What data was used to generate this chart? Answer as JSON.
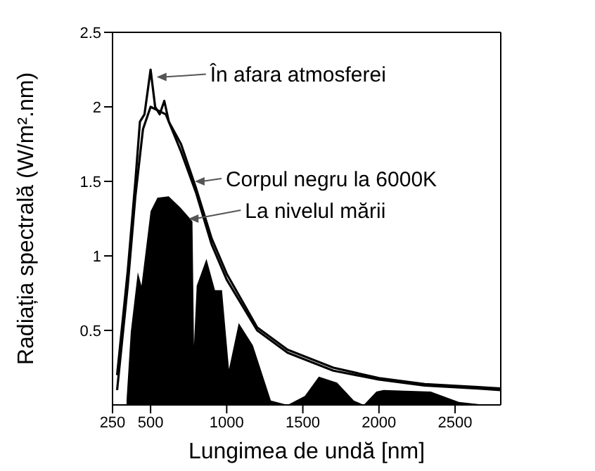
{
  "chart_data": {
    "type": "line",
    "xlabel": "Lungimea de undă [nm]",
    "ylabel": "Radiația spectrală (W/m².nm)",
    "xlim": [
      250,
      2800
    ],
    "ylim": [
      0,
      2.5
    ],
    "xticks": [
      250,
      500,
      1000,
      1500,
      2000,
      2500
    ],
    "yticks": [
      0.5,
      1.0,
      1.5,
      2.0,
      2.5
    ],
    "marker": "none",
    "series": [
      {
        "color": "#000000",
        "type": "area",
        "x": [
          342,
          370,
          416,
          440,
          470,
          500,
          545,
          619,
          700,
          760,
          775,
          785,
          803,
          867,
          923,
          969,
          1015,
          1079,
          1172,
          1290,
          1400,
          1513,
          1605,
          1725,
          1835,
          1900,
          1983,
          2030,
          2340,
          2525,
          2700
        ],
        "values": [
          0.03,
          0.49,
          0.89,
          0.8,
          1.05,
          1.3,
          1.39,
          1.4,
          1.32,
          1.25,
          1.23,
          0.4,
          0.8,
          0.98,
          0.77,
          0.77,
          0.24,
          0.55,
          0.4,
          0.03,
          0,
          0.06,
          0.19,
          0.15,
          0.03,
          0,
          0.09,
          0.1,
          0.09,
          0.02,
          0
        ]
      },
      {
        "color": "#000000",
        "x": [
          280,
          350,
          400,
          430,
          460,
          500,
          530,
          560,
          590,
          620,
          700,
          800,
          900,
          1000,
          1200,
          1400,
          1700,
          2000,
          2300,
          2650,
          2800
        ],
        "values": [
          0.2,
          0.9,
          1.5,
          1.9,
          1.95,
          2.25,
          2.0,
          1.95,
          2.04,
          1.9,
          1.75,
          1.45,
          1.12,
          0.88,
          0.52,
          0.37,
          0.25,
          0.18,
          0.14,
          0.12,
          0.11
        ]
      },
      {
        "color": "#000000",
        "x": [
          280,
          350,
          400,
          450,
          500,
          600,
          700,
          800,
          900,
          1000,
          1200,
          1400,
          1700,
          2000,
          2300,
          2650,
          2800
        ],
        "values": [
          0.1,
          0.8,
          1.4,
          1.85,
          2.0,
          1.95,
          1.7,
          1.42,
          1.08,
          0.84,
          0.5,
          0.35,
          0.23,
          0.17,
          0.13,
          0.11,
          0.1
        ]
      }
    ],
    "annotations": [
      {
        "text": "În afara atmosferei",
        "x": 540,
        "y": 2.2
      },
      {
        "text": "Corpul negru la 6000K",
        "x": 790,
        "y": 1.5
      },
      {
        "text": "La nivelul mării",
        "x": 750,
        "y": 1.25
      }
    ]
  }
}
